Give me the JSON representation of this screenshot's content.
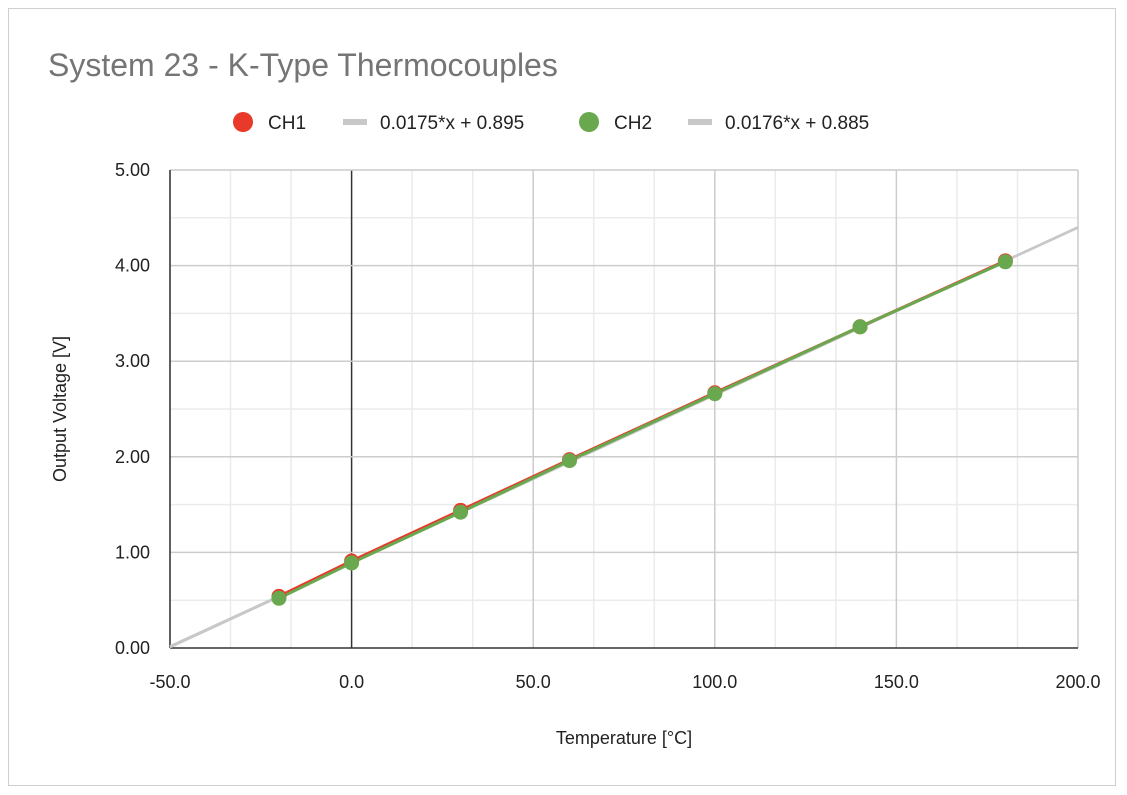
{
  "chart_data": {
    "type": "scatter",
    "title": "System 23 - K-Type Thermocouples",
    "xlabel": "Temperature [°C]",
    "ylabel": "Output Voltage [V]",
    "xlim": [
      -50,
      200
    ],
    "ylim": [
      0,
      5
    ],
    "x_ticks": [
      "-50.0",
      "0.0",
      "50.0",
      "100.0",
      "150.0",
      "200.0"
    ],
    "x_tick_values": [
      -50,
      0,
      50,
      100,
      150,
      200
    ],
    "y_ticks": [
      "0.00",
      "1.00",
      "2.00",
      "3.00",
      "4.00",
      "5.00"
    ],
    "y_tick_values": [
      0,
      1,
      2,
      3,
      4,
      5
    ],
    "grid": true,
    "legend_position": "top",
    "series": [
      {
        "name": "CH1",
        "color": "#e8392a",
        "x": [
          -20,
          0,
          30,
          60,
          100,
          140,
          180
        ],
        "y": [
          0.54,
          0.91,
          1.44,
          1.97,
          2.67,
          3.36,
          4.05
        ]
      },
      {
        "name": "CH2",
        "color": "#6aa84f",
        "x": [
          -20,
          0,
          30,
          60,
          100,
          140,
          180
        ],
        "y": [
          0.52,
          0.89,
          1.42,
          1.96,
          2.66,
          3.36,
          4.04
        ]
      }
    ],
    "trendlines": [
      {
        "name": "0.0175*x + 0.895",
        "slope": 0.0175,
        "intercept": 0.895,
        "color": "#c8c8c8"
      },
      {
        "name": "0.0176*x + 0.885",
        "slope": 0.0176,
        "intercept": 0.885,
        "color": "#c8c8c8"
      }
    ]
  }
}
